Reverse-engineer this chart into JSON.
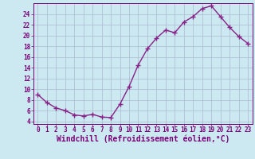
{
  "x": [
    0,
    1,
    2,
    3,
    4,
    5,
    6,
    7,
    8,
    9,
    10,
    11,
    12,
    13,
    14,
    15,
    16,
    17,
    18,
    19,
    20,
    21,
    22,
    23
  ],
  "y": [
    9.0,
    7.5,
    6.5,
    6.0,
    5.2,
    5.0,
    5.3,
    4.8,
    4.7,
    7.2,
    10.5,
    14.5,
    17.5,
    19.5,
    21.0,
    20.5,
    22.5,
    23.5,
    25.0,
    25.5,
    23.5,
    21.5,
    19.8,
    18.5
  ],
  "line_color": "#882288",
  "marker": "+",
  "marker_size": 4,
  "bg_color": "#cce8f0",
  "grid_color": "#aabbd0",
  "xlabel": "Windchill (Refroidissement éolien,°C)",
  "xlim": [
    -0.5,
    23.5
  ],
  "ylim": [
    3.5,
    26.0
  ],
  "yticks": [
    4,
    6,
    8,
    10,
    12,
    14,
    16,
    18,
    20,
    22,
    24
  ],
  "xticks": [
    0,
    1,
    2,
    3,
    4,
    5,
    6,
    7,
    8,
    9,
    10,
    11,
    12,
    13,
    14,
    15,
    16,
    17,
    18,
    19,
    20,
    21,
    22,
    23
  ],
  "font_color": "#770077",
  "tick_fontsize": 5.5,
  "xlabel_fontsize": 7.0,
  "line_width": 1.0,
  "markeredgewidth": 1.0
}
